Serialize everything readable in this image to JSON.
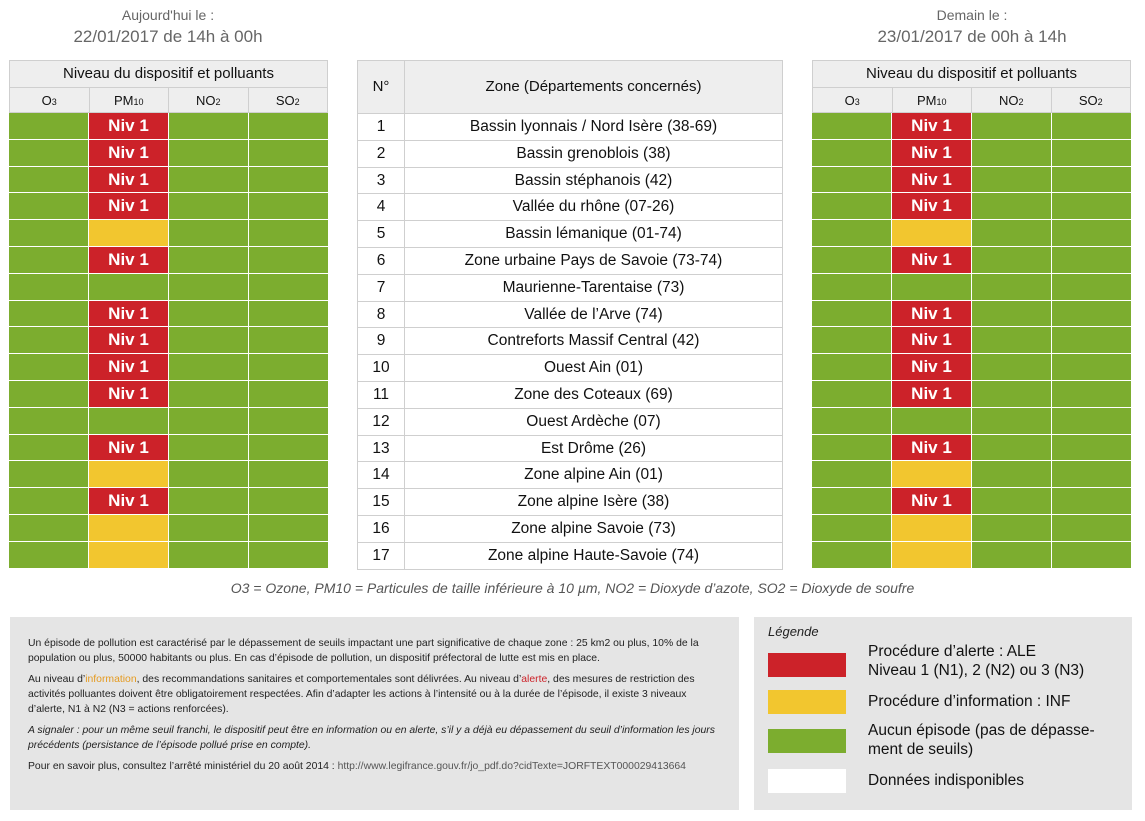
{
  "today": {
    "label": "Aujourd'hui le :",
    "date": "22/01/2017 de 14h à 00h"
  },
  "tomorrow": {
    "label": "Demain le :",
    "date": "23/01/2017 de 00h à 14h"
  },
  "panel_title": "Niveau du dispositif et polluants",
  "pollutants": [
    {
      "base": "O",
      "sub": "3"
    },
    {
      "base": "PM",
      "sub": "10"
    },
    {
      "base": "NO",
      "sub": "2"
    },
    {
      "base": "SO",
      "sub": "2"
    }
  ],
  "zone_header": {
    "num": "N°",
    "zone": "Zone (Départements concernés)"
  },
  "zones": [
    {
      "num": "1",
      "name": "Bassin lyonnais / Nord Isère (38-69)"
    },
    {
      "num": "2",
      "name": "Bassin grenoblois (38)"
    },
    {
      "num": "3",
      "name": "Bassin stéphanois (42)"
    },
    {
      "num": "4",
      "name": "Vallée du rhône (07-26)"
    },
    {
      "num": "5",
      "name": "Bassin lémanique (01-74)"
    },
    {
      "num": "6",
      "name": "Zone urbaine Pays de Savoie (73-74)"
    },
    {
      "num": "7",
      "name": "Maurienne-Tarentaise (73)"
    },
    {
      "num": "8",
      "name": "Vallée de l’Arve (74)"
    },
    {
      "num": "9",
      "name": "Contreforts Massif Central (42)"
    },
    {
      "num": "10",
      "name": "Ouest Ain (01)"
    },
    {
      "num": "11",
      "name": "Zone des Coteaux (69)"
    },
    {
      "num": "12",
      "name": "Ouest Ardèche (07)"
    },
    {
      "num": "13",
      "name": "Est Drôme (26)"
    },
    {
      "num": "14",
      "name": "Zone alpine Ain (01)"
    },
    {
      "num": "15",
      "name": "Zone alpine Isère (38)"
    },
    {
      "num": "16",
      "name": "Zone alpine Savoie (73)"
    },
    {
      "num": "17",
      "name": "Zone alpine Haute-Savoie (74)"
    }
  ],
  "level_label": "Niv 1",
  "today_pm10": [
    "red",
    "red",
    "red",
    "red",
    "yellow",
    "red",
    "green",
    "red",
    "red",
    "red",
    "red",
    "green",
    "red",
    "yellow",
    "red",
    "yellow",
    "yellow"
  ],
  "tomorrow_pm10": [
    "red",
    "red",
    "red",
    "red",
    "yellow",
    "red",
    "green",
    "red",
    "red",
    "red",
    "red",
    "green",
    "red",
    "yellow",
    "red",
    "yellow",
    "yellow"
  ],
  "colors": {
    "red": "#cc2229",
    "yellow": "#f2c62f",
    "green": "#7cad2f",
    "white": "#ffffff"
  },
  "abbreviations": "O3 = Ozone, PM10 = Particules de taille inférieure à 10 µm, NO2 = Dioxyde d’azote, SO2 = Dioxyde de soufre",
  "info": {
    "p1": "Un épisode de pollution est caractérisé par le dépassement de seuils impactant une part significative de chaque zone : 25 km2 ou plus, 10% de la population ou plus, 50000 habitants ou plus. En cas d’épisode de pollution, un dispositif préfectoral de lutte est mis en place.",
    "p2_a": "Au niveau d’",
    "p2_info": "information",
    "p2_b": ", des recommandations sanitaires et comportementales sont délivrées. Au niveau d’",
    "p2_alert": "alerte",
    "p2_c": ", des mesures de restriction des activités polluantes doivent être obligatoirement respectées. Afin d’adapter les actions à l’intensité ou à la durée de l’épisode, il existe 3 niveaux d’alerte, N1 à N2 (N3 = actions renforcées).",
    "p3": "A signaler : pour un même seuil franchi, le dispositif peut être en information ou en alerte, s’il y a déjà eu dépassement du seuil d’information les jours précédents (persistance de l’épisode pollué prise en compte).",
    "p4_a": "Pour en savoir plus, consultez l’arrêté ministériel du 20 août 2014 : ",
    "p4_url": "http://www.legifrance.gouv.fr/jo_pdf.do?cidTexte=JORFTEXT000029413664"
  },
  "legend": {
    "title": "Légende",
    "items": [
      {
        "color": "red",
        "text": "Procédure d’alerte : ALE\nNiveau 1 (N1), 2 (N2) ou 3 (N3)"
      },
      {
        "color": "yellow",
        "text": "Procédure d’information : INF"
      },
      {
        "color": "green",
        "text": "Aucun épisode (pas de dépasse-\nment de seuils)"
      },
      {
        "color": "white",
        "text": "Données indisponibles"
      }
    ]
  }
}
